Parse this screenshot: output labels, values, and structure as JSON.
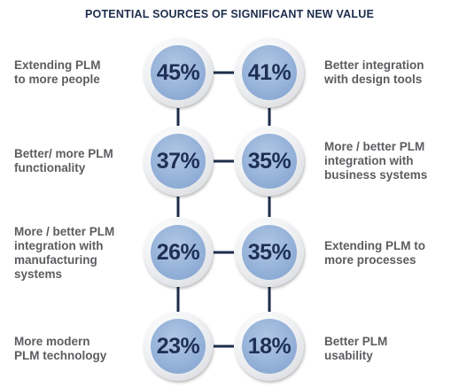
{
  "title": "POTENTIAL SOURCES OF SIGNIFICANT NEW VALUE",
  "colors": {
    "title": "#1d2d4b",
    "connector": "#1d2d4b",
    "bubble_fill": "#93b0d8",
    "value_text": "#1f2f55",
    "label_text": "#5b5d60"
  },
  "rows": [
    {
      "left": {
        "value": "45%",
        "label": [
          "Extending PLM",
          "to more people"
        ]
      },
      "right": {
        "value": "41%",
        "label": [
          "Better integration",
          "with design tools"
        ]
      }
    },
    {
      "left": {
        "value": "37%",
        "label": [
          "Better/ more PLM",
          "functionality"
        ]
      },
      "right": {
        "value": "35%",
        "label": [
          "More / better PLM",
          "integration with",
          "business systems"
        ]
      }
    },
    {
      "left": {
        "value": "26%",
        "label": [
          "More / better PLM",
          "integration with",
          "manufacturing",
          "systems"
        ]
      },
      "right": {
        "value": "35%",
        "label": [
          "Extending PLM to",
          "more processes"
        ]
      }
    },
    {
      "left": {
        "value": "23%",
        "label": [
          "More modern",
          "PLM technology"
        ]
      },
      "right": {
        "value": "18%",
        "label": [
          "Better PLM",
          "usability"
        ]
      }
    }
  ]
}
